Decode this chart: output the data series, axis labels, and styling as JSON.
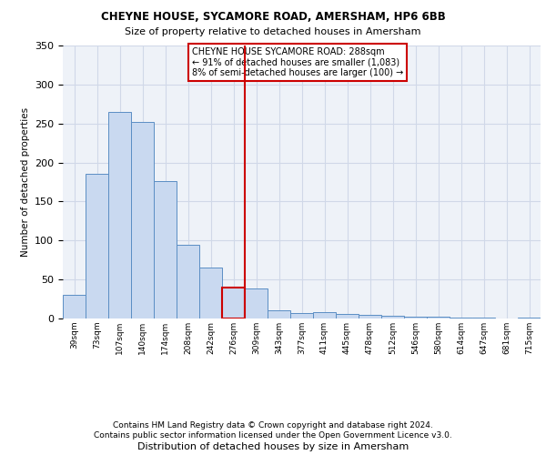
{
  "title1": "CHEYNE HOUSE, SYCAMORE ROAD, AMERSHAM, HP6 6BB",
  "title2": "Size of property relative to detached houses in Amersham",
  "xlabel": "Distribution of detached houses by size in Amersham",
  "ylabel": "Number of detached properties",
  "categories": [
    "39sqm",
    "73sqm",
    "107sqm",
    "140sqm",
    "174sqm",
    "208sqm",
    "242sqm",
    "276sqm",
    "309sqm",
    "343sqm",
    "377sqm",
    "411sqm",
    "445sqm",
    "478sqm",
    "512sqm",
    "546sqm",
    "580sqm",
    "614sqm",
    "647sqm",
    "681sqm",
    "715sqm"
  ],
  "values": [
    30,
    186,
    265,
    252,
    176,
    95,
    65,
    40,
    38,
    11,
    7,
    8,
    6,
    5,
    4,
    2,
    2,
    1,
    1,
    0,
    1
  ],
  "bar_color": "#c9d9f0",
  "bar_edge_color": "#5b8ec4",
  "highlight_bar_index": 7,
  "highlight_bar_edge_color": "#cc0000",
  "vline_color": "#cc0000",
  "annotation_text": "CHEYNE HOUSE SYCAMORE ROAD: 288sqm\n← 91% of detached houses are smaller (1,083)\n8% of semi-detached houses are larger (100) →",
  "annotation_box_color": "#ffffff",
  "annotation_box_edge_color": "#cc0000",
  "grid_color": "#d0d8e8",
  "bg_color": "#eef2f8",
  "ylim": [
    0,
    350
  ],
  "footer1": "Contains HM Land Registry data © Crown copyright and database right 2024.",
  "footer2": "Contains public sector information licensed under the Open Government Licence v3.0."
}
